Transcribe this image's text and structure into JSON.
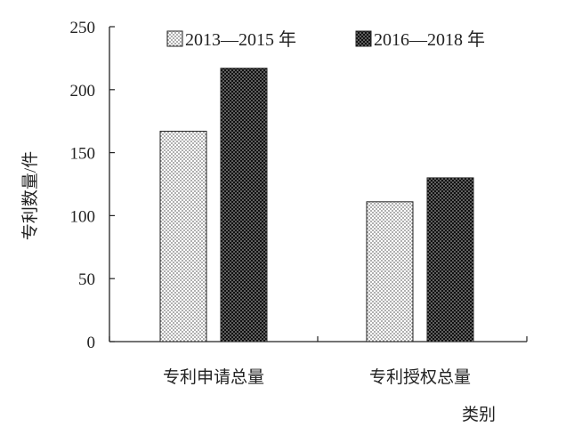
{
  "chart_data": {
    "type": "bar",
    "title": "",
    "xlabel": "类别",
    "ylabel": "专利数量/件",
    "ylim": [
      0,
      250
    ],
    "yticks": [
      0,
      50,
      100,
      150,
      200,
      250
    ],
    "grid": false,
    "legend_position": "top",
    "categories": [
      "专利申请总量",
      "专利授权总量"
    ],
    "series": [
      {
        "name": "2013—2015 年",
        "values": [
          167,
          111
        ],
        "color": "#f2f2f2",
        "pattern": "dotted-light"
      },
      {
        "name": "2016—2018 年",
        "values": [
          217,
          130
        ],
        "color": "#333333",
        "pattern": "dotted-dark"
      }
    ]
  }
}
